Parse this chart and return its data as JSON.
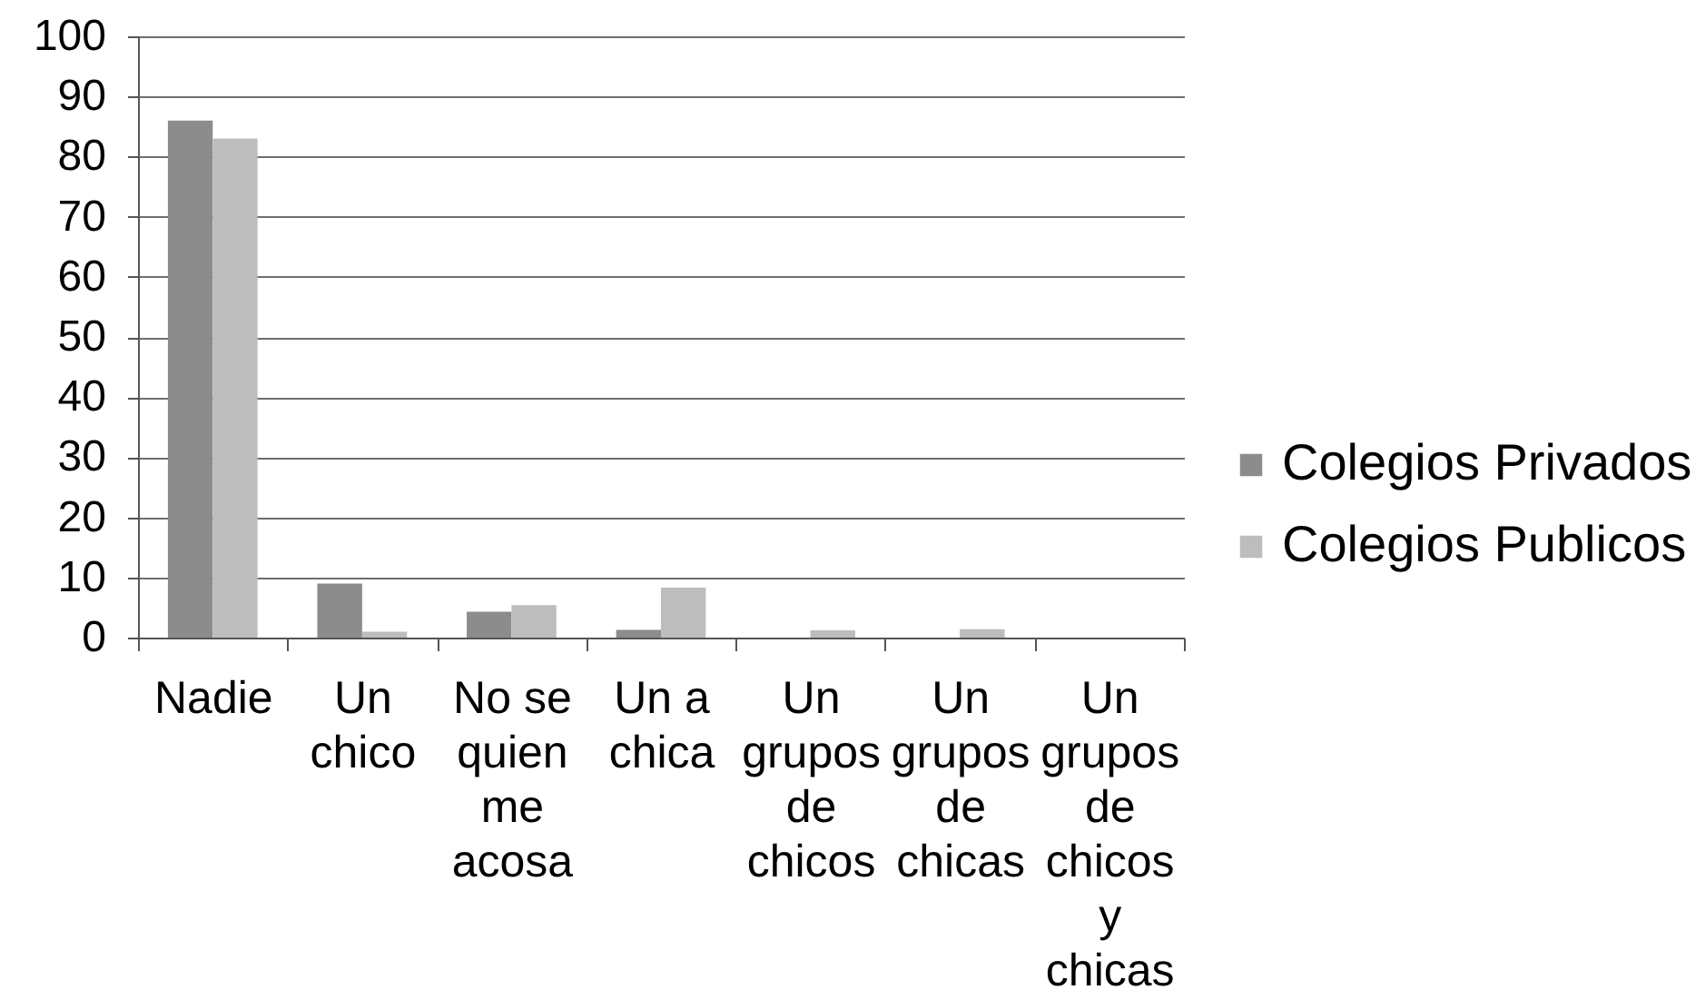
{
  "chart_data": {
    "type": "bar",
    "categories": [
      "Nadie",
      "Un chico",
      "No se quien me acosa",
      "Un a chica",
      "Un grupos de chicos",
      "Un grupos de chicas",
      "Un grupos de chicos y chicas"
    ],
    "series": [
      {
        "name": "Colegios Privados",
        "color": "#8c8c8c",
        "values": [
          86,
          9,
          4.3,
          1.3,
          0,
          0,
          0
        ]
      },
      {
        "name": "Colegios Publicos",
        "color": "#bdbdbd",
        "values": [
          83,
          1,
          5.4,
          8.3,
          1.2,
          1.4,
          0
        ]
      }
    ],
    "ylim": [
      0,
      100
    ],
    "yticks": [
      0,
      10,
      20,
      30,
      40,
      50,
      60,
      70,
      80,
      90,
      100
    ],
    "grid": "y",
    "legend": "right"
  }
}
